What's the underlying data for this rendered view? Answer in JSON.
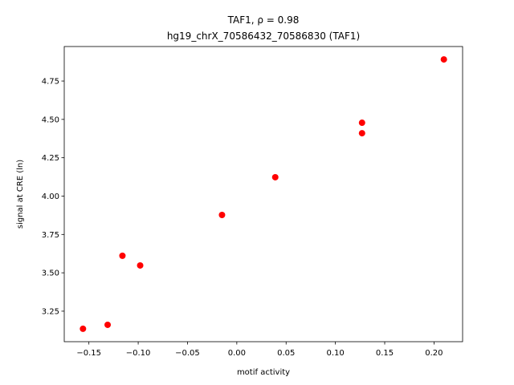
{
  "chart_data": {
    "type": "scatter",
    "title": "TAF1, ρ = 0.98",
    "subtitle": "hg19_chrX_70586432_70586830 (TAF1)",
    "x_label": "motif activity",
    "y_label": "signal at CRE (ln)",
    "color": "#ff0000",
    "x": [
      -0.156,
      -0.131,
      -0.116,
      -0.098,
      -0.015,
      0.039,
      0.127,
      0.127,
      0.21
    ],
    "y": [
      3.135,
      3.161,
      3.611,
      3.548,
      3.877,
      4.123,
      4.478,
      4.41,
      4.891
    ],
    "xlim": [
      -0.175,
      0.229
    ],
    "ylim": [
      3.051,
      4.975
    ],
    "xticks": [
      {
        "value": -0.15,
        "label": "−0.15"
      },
      {
        "value": -0.1,
        "label": "−0.10"
      },
      {
        "value": -0.05,
        "label": "−0.05"
      },
      {
        "value": 0,
        "label": "0.00"
      },
      0.05,
      {
        "value": 0.1,
        "label": "0.10"
      },
      0.15,
      {
        "value": 0.2,
        "label": "0.20"
      }
    ],
    "yticks": [
      3.25,
      {
        "value": 3.5,
        "label": "3.50"
      },
      3.75,
      {
        "value": 4,
        "label": "4.00"
      },
      4.25,
      {
        "value": 4.5,
        "label": "4.50"
      },
      4.75
    ]
  }
}
